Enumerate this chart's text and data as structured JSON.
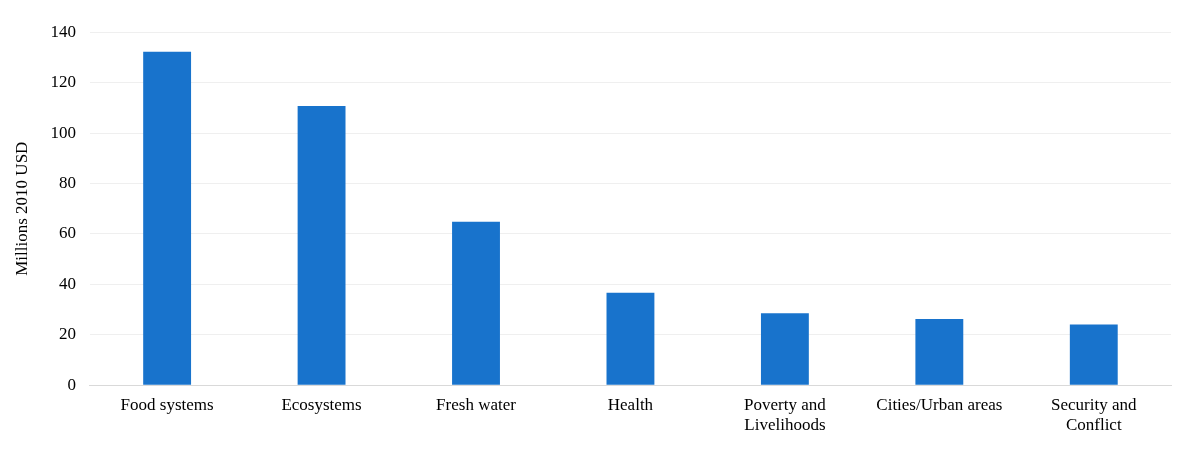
{
  "chart_data": {
    "type": "bar",
    "ylabel": "Millions 2010 USD",
    "categories": [
      "Food systems",
      "Ecosystems",
      "Fresh water",
      "Health",
      "Poverty and Livelihoods",
      "Cities/Urban areas",
      "Security and Conflict"
    ],
    "values": [
      132.2,
      110.7,
      64.8,
      36.7,
      28.5,
      26.3,
      24.1
    ],
    "color": "#1873cc",
    "ylim": [
      0,
      140
    ],
    "yticks": [
      0,
      20,
      40,
      60,
      80,
      100,
      120,
      140
    ],
    "grid": "y",
    "legend": false
  }
}
